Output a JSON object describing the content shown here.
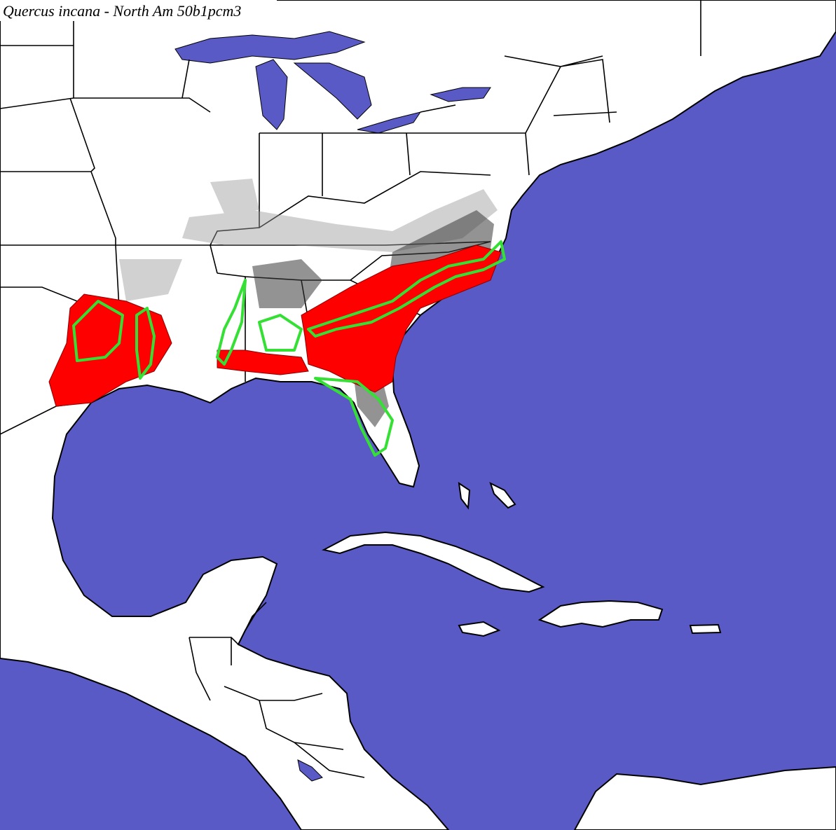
{
  "title": "Quercus incana - North Am 50b1pcm3"
}
